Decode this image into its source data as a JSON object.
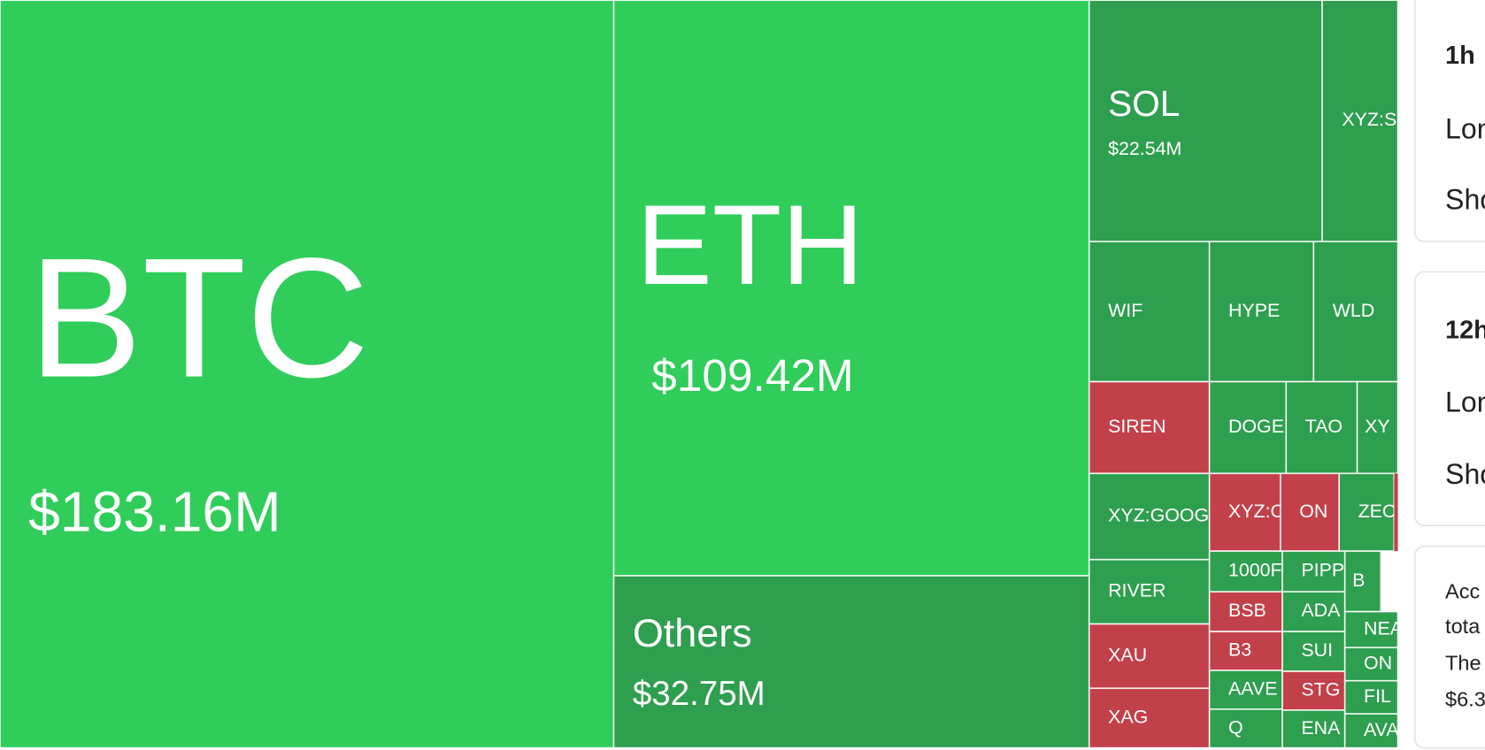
{
  "treemap": {
    "tiles": [
      {
        "label": "BTC",
        "value": "$183.16M",
        "color": "#30cd5a"
      },
      {
        "label": "ETH",
        "value": "$109.42M",
        "color": "#30cd5a"
      },
      {
        "label": "Others",
        "value": "$32.75M",
        "color": "#2e9e4f"
      },
      {
        "label": "SOL",
        "value": "$22.54M",
        "color": "#2e9e4f"
      },
      {
        "label": "XYZ:S",
        "color": "#2e9e4f"
      },
      {
        "label": "WIF",
        "color": "#2e9e4f"
      },
      {
        "label": "HYPE",
        "color": "#2e9e4f"
      },
      {
        "label": "WLD",
        "color": "#2e9e4f"
      },
      {
        "label": "SIREN",
        "color": "#c2404a"
      },
      {
        "label": "DOGE",
        "color": "#2e9e4f"
      },
      {
        "label": "TAO",
        "color": "#2e9e4f"
      },
      {
        "label": "XY",
        "color": "#2e9e4f"
      },
      {
        "label": "XYZ:GOOG",
        "color": "#2e9e4f"
      },
      {
        "label": "XYZ:C",
        "color": "#c2404a"
      },
      {
        "label": "ON",
        "color": "#c2404a"
      },
      {
        "label": "ZEC",
        "color": "#2e9e4f"
      },
      {
        "label": "RIVER",
        "color": "#2e9e4f"
      },
      {
        "label": "XAU",
        "color": "#c2404a"
      },
      {
        "label": "XAG",
        "color": "#c2404a"
      },
      {
        "label": "1000F",
        "color": "#2e9e4f"
      },
      {
        "label": "PIPP",
        "color": "#2e9e4f"
      },
      {
        "label": "B",
        "color": "#2e9e4f"
      },
      {
        "label": "BSB",
        "color": "#c2404a"
      },
      {
        "label": "ADA",
        "color": "#2e9e4f"
      },
      {
        "label": "B3",
        "color": "#c2404a"
      },
      {
        "label": "SUI",
        "color": "#2e9e4f"
      },
      {
        "label": "NEA",
        "color": "#2e9e4f"
      },
      {
        "label": "ON",
        "color": "#2e9e4f"
      },
      {
        "label": "AAVE",
        "color": "#2e9e4f"
      },
      {
        "label": "STG",
        "color": "#c2404a"
      },
      {
        "label": "FIL",
        "color": "#2e9e4f"
      },
      {
        "label": "Q",
        "color": "#2e9e4f"
      },
      {
        "label": "ENA",
        "color": "#2e9e4f"
      },
      {
        "label": "AVA",
        "color": "#2e9e4f"
      }
    ]
  },
  "sidebar": {
    "cards": [
      {
        "title": "1h",
        "lines": [
          "Lon",
          "Sho"
        ]
      },
      {
        "title": "12h",
        "lines": [
          "Lon",
          "Sho"
        ]
      },
      {
        "lines": [
          "Acc",
          "tota",
          "The",
          "$6.3"
        ]
      }
    ]
  }
}
